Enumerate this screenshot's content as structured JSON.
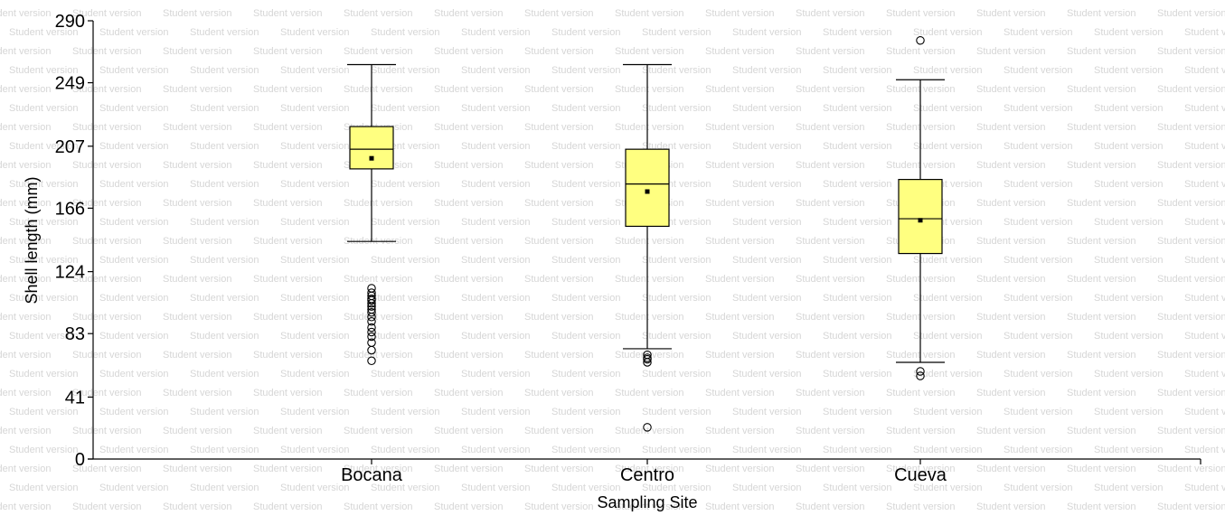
{
  "watermark": "Student version",
  "chart_data": {
    "type": "box",
    "xlabel": "Sampling Site",
    "ylabel": "Shell length (mm)",
    "ylim": [
      0,
      290
    ],
    "yticks": [
      0,
      41,
      83,
      124,
      166,
      207,
      249,
      290
    ],
    "categories": [
      "Bocana",
      "Centro",
      "Cueva"
    ],
    "series": [
      {
        "category": "Bocana",
        "whisker_low": 144,
        "q1": 192,
        "median": 205,
        "q3": 220,
        "whisker_high": 261,
        "mean": 199,
        "outliers": [
          113,
          110,
          108,
          106,
          105,
          103,
          101,
          99,
          97,
          94,
          91,
          87,
          84,
          81,
          77,
          72,
          65
        ]
      },
      {
        "category": "Centro",
        "whisker_low": 73,
        "q1": 154,
        "median": 182,
        "q3": 205,
        "whisker_high": 261,
        "mean": 177,
        "outliers": [
          69,
          67,
          66,
          64,
          21
        ]
      },
      {
        "category": "Cueva",
        "whisker_low": 64,
        "q1": 136,
        "median": 159,
        "q3": 185,
        "whisker_high": 251,
        "mean": 158,
        "outliers": [
          277,
          58,
          55
        ]
      }
    ],
    "box_fill": "#ffff80",
    "grid": false,
    "legend": "none"
  }
}
